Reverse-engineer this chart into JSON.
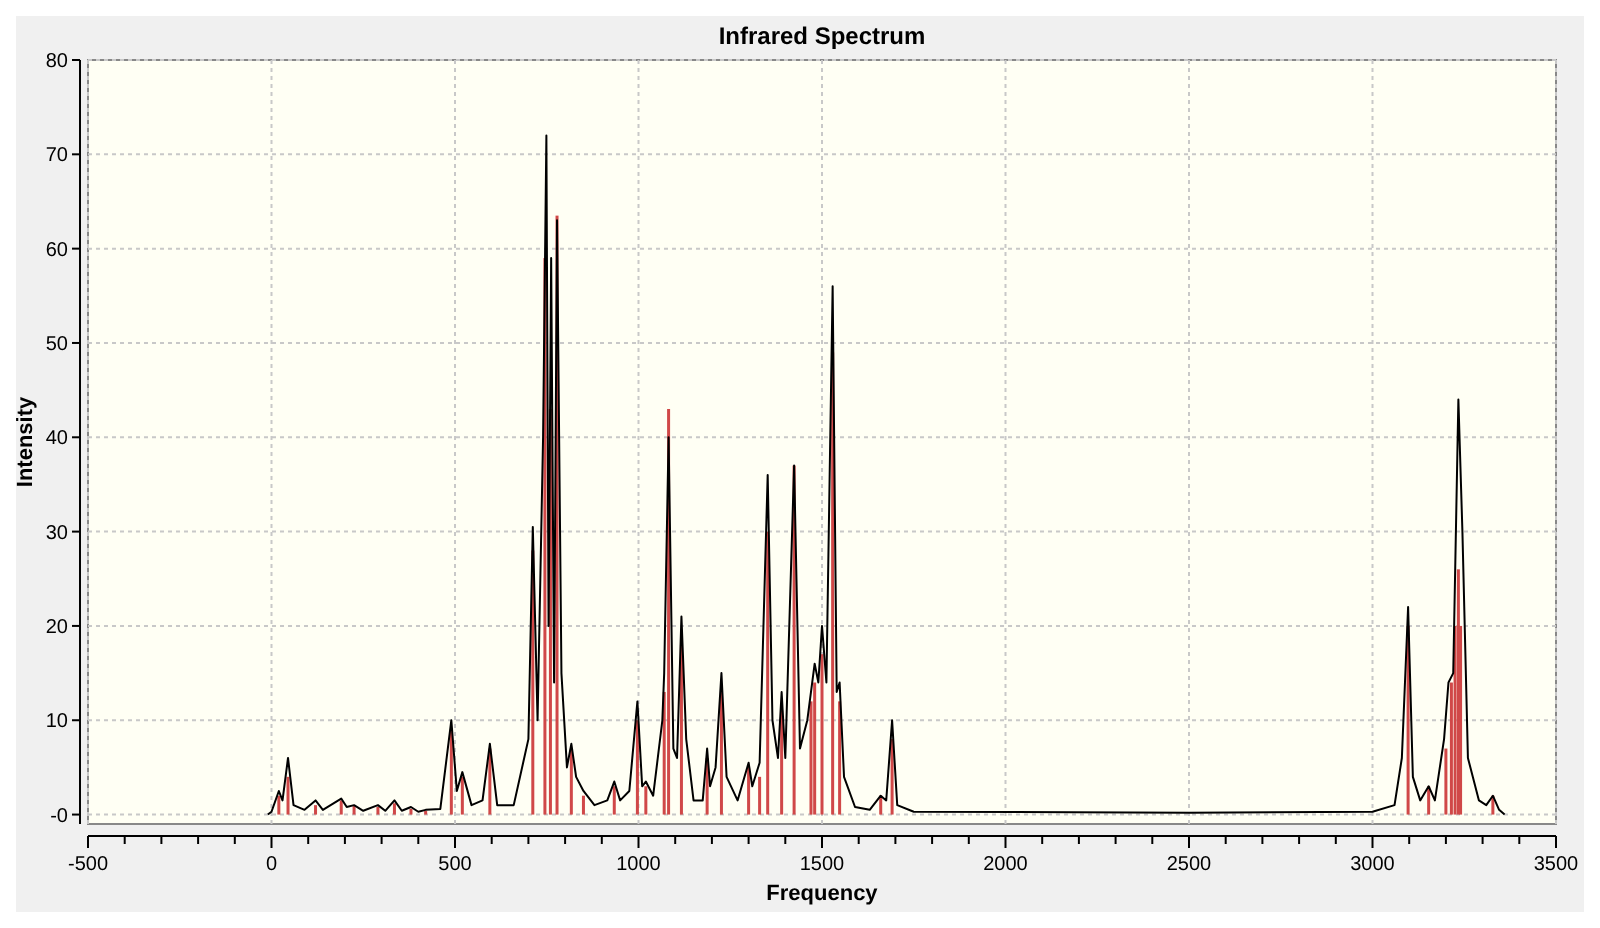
{
  "chart_data": {
    "type": "line",
    "title": "Infrared Spectrum",
    "xlabel": "Frequency",
    "ylabel": "Intensity",
    "xlim": [
      -500,
      3500
    ],
    "xticks": [
      -500,
      {
        "value": -400,
        "label": null
      },
      {
        "value": -300,
        "label": null
      },
      {
        "value": -200,
        "label": null
      },
      {
        "value": -100,
        "label": null
      },
      0,
      {
        "value": 100,
        "label": null
      },
      {
        "value": 200,
        "label": null
      },
      {
        "value": 300,
        "label": null
      },
      {
        "value": 400,
        "label": null
      },
      500,
      {
        "value": 600,
        "label": null
      },
      {
        "value": 700,
        "label": null
      },
      {
        "value": 800,
        "label": null
      },
      {
        "value": 900,
        "label": null
      },
      1000,
      {
        "value": 1100,
        "label": null
      },
      {
        "value": 1200,
        "label": null
      },
      {
        "value": 1300,
        "label": null
      },
      {
        "value": 1400,
        "label": null
      },
      1500,
      {
        "value": 1600,
        "label": null
      },
      {
        "value": 1700,
        "label": null
      },
      {
        "value": 1800,
        "label": null
      },
      {
        "value": 1900,
        "label": null
      },
      2000,
      {
        "value": 2100,
        "label": null
      },
      {
        "value": 2200,
        "label": null
      },
      {
        "value": 2300,
        "label": null
      },
      {
        "value": 2400,
        "label": null
      },
      2500,
      {
        "value": 2600,
        "label": null
      },
      {
        "value": 2700,
        "label": null
      },
      {
        "value": 2800,
        "label": null
      },
      {
        "value": 2900,
        "label": null
      },
      3000,
      {
        "value": 3100,
        "label": null
      },
      {
        "value": 3200,
        "label": null
      },
      {
        "value": 3300,
        "label": null
      },
      {
        "value": 3400,
        "label": null
      },
      3500
    ],
    "ylim": [
      -1,
      80
    ],
    "yticks": [
      {
        "value": 0,
        "label": "-0"
      },
      10,
      20,
      30,
      40,
      50,
      60,
      70,
      80
    ],
    "grid": true,
    "series": [
      {
        "type": "bar",
        "color": "#d04848",
        "x": [
          20,
          45,
          120,
          190,
          225,
          290,
          335,
          380,
          420,
          490,
          520,
          595,
          712,
          745,
          760,
          778,
          817,
          850,
          934,
          997,
          1020,
          1070,
          1082,
          1117,
          1187,
          1226,
          1300,
          1330,
          1352,
          1390,
          1424,
          1470,
          1480,
          1500,
          1529,
          1548,
          1660,
          1691,
          3097,
          3153,
          3200,
          3215,
          3225,
          3234,
          3240,
          3328
        ],
        "values": [
          2,
          4,
          1,
          1.5,
          1,
          0.8,
          1.2,
          0.6,
          0.4,
          9,
          4,
          7,
          28,
          59,
          43,
          63.5,
          7,
          2,
          3,
          10,
          3,
          13,
          43,
          18,
          6,
          13,
          5,
          4,
          30,
          11,
          37,
          12,
          14,
          17,
          49,
          12,
          2,
          8,
          20,
          3,
          7,
          14,
          20,
          26,
          20,
          2
        ]
      },
      {
        "color": "#000000",
        "x": [
          -10,
          0,
          20,
          30,
          45,
          60,
          90,
          120,
          140,
          190,
          205,
          225,
          250,
          290,
          310,
          335,
          355,
          380,
          400,
          420,
          460,
          490,
          505,
          520,
          545,
          575,
          595,
          615,
          660,
          700,
          712,
          725,
          740,
          749,
          755,
          762,
          770,
          778,
          790,
          805,
          817,
          830,
          850,
          880,
          915,
          934,
          950,
          975,
          997,
          1010,
          1020,
          1040,
          1065,
          1070,
          1082,
          1095,
          1105,
          1117,
          1130,
          1150,
          1175,
          1187,
          1195,
          1210,
          1226,
          1240,
          1270,
          1300,
          1310,
          1330,
          1352,
          1365,
          1380,
          1390,
          1400,
          1424,
          1440,
          1460,
          1470,
          1480,
          1490,
          1500,
          1512,
          1529,
          1540,
          1548,
          1560,
          1590,
          1630,
          1660,
          1675,
          1691,
          1705,
          1750,
          2500,
          3000,
          3060,
          3080,
          3097,
          3110,
          3130,
          3153,
          3170,
          3195,
          3207,
          3220,
          3234,
          3245,
          3260,
          3290,
          3310,
          3328,
          3345,
          3360
        ],
        "values": [
          0,
          0.3,
          2.5,
          1.5,
          6,
          1,
          0.5,
          1.5,
          0.5,
          1.7,
          0.8,
          1,
          0.4,
          1,
          0.4,
          1.5,
          0.4,
          0.8,
          0.3,
          0.5,
          0.6,
          10,
          2.5,
          4.5,
          1,
          1.5,
          7.5,
          1,
          1,
          8,
          30.5,
          10,
          40,
          72,
          20,
          59,
          14,
          63,
          15,
          5,
          7.5,
          4,
          2.5,
          1,
          1.5,
          3.5,
          1.5,
          2.5,
          12,
          3,
          3.5,
          2,
          10,
          15,
          40,
          7,
          6,
          21,
          8,
          1.5,
          1.5,
          7,
          3,
          5,
          15,
          4,
          1.5,
          5.5,
          3,
          5.5,
          36,
          10,
          6,
          13,
          6,
          37,
          7,
          10,
          13,
          16,
          14,
          20,
          14,
          56,
          13,
          14,
          4,
          0.8,
          0.5,
          2,
          1.5,
          10,
          1,
          0.3,
          0.2,
          0.3,
          1,
          6,
          22,
          4,
          1.5,
          3,
          1.5,
          8,
          14,
          15,
          44,
          30,
          6,
          1.5,
          1,
          2,
          0.5,
          0
        ]
      }
    ]
  }
}
